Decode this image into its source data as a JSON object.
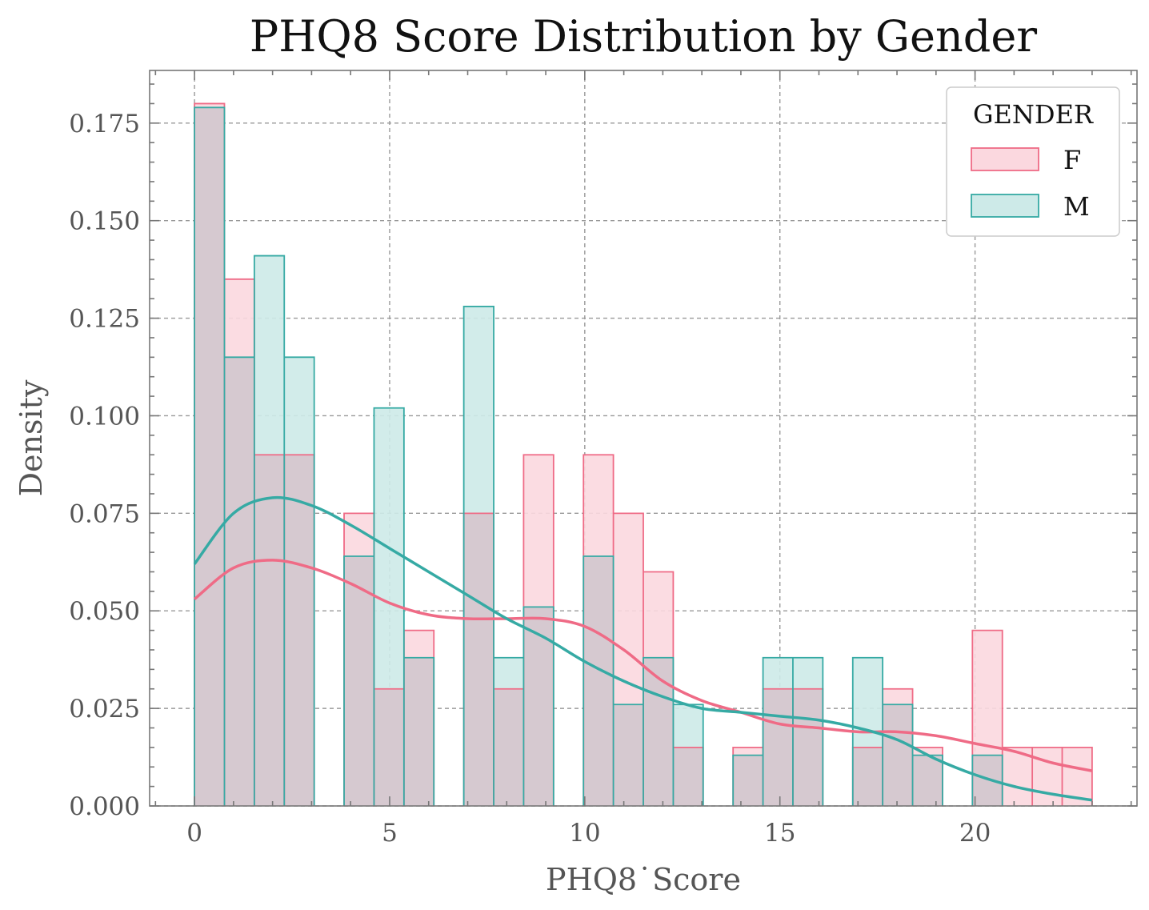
{
  "chart_data": {
    "type": "bar",
    "title": "PHQ8 Score Distribution by Gender",
    "xlabel": "PHQ8˙Score",
    "ylabel": "Density",
    "xlim": [
      -1.15,
      24.15
    ],
    "ylim": [
      0,
      0.1885
    ],
    "xticks": [
      0,
      5,
      10,
      15,
      20
    ],
    "yticks": [
      0.0,
      0.025,
      0.05,
      0.075,
      0.1,
      0.125,
      0.15,
      0.175
    ],
    "ytick_labels": [
      "0.000",
      "0.025",
      "0.050",
      "0.075",
      "0.100",
      "0.125",
      "0.150",
      "0.175"
    ],
    "xtick_labels": [
      "0",
      "5",
      "10",
      "15",
      "20"
    ],
    "grid": true,
    "legend": {
      "title": "GENDER",
      "placement": "top-right"
    },
    "bin_edges": [
      0,
      0.767,
      1.533,
      2.3,
      3.067,
      3.833,
      4.6,
      5.367,
      6.133,
      6.9,
      7.667,
      8.433,
      9.2,
      9.967,
      10.733,
      11.5,
      12.267,
      13.033,
      13.8,
      14.567,
      15.333,
      16.1,
      16.867,
      17.633,
      18.4,
      19.167,
      19.933,
      20.7,
      21.467,
      22.233,
      23.0
    ],
    "series": [
      {
        "name": "F",
        "line_color": "#ef6b86",
        "fill_color": "#fbd8df",
        "values": [
          0.18,
          0.135,
          0.09,
          0.09,
          0.0,
          0.075,
          0.03,
          0.045,
          0.0,
          0.075,
          0.03,
          0.09,
          0.0,
          0.09,
          0.075,
          0.06,
          0.015,
          0.0,
          0.015,
          0.03,
          0.03,
          0.0,
          0.015,
          0.03,
          0.015,
          0.0,
          0.045,
          0.015,
          0.015,
          0.015
        ],
        "kde": {
          "x": [
            0,
            1,
            2,
            3,
            4,
            5,
            6,
            7,
            8,
            9,
            10,
            11,
            12,
            13,
            14,
            15,
            16,
            17,
            18,
            19,
            20,
            21,
            22,
            23
          ],
          "y": [
            0.053,
            0.061,
            0.063,
            0.061,
            0.057,
            0.052,
            0.049,
            0.048,
            0.048,
            0.048,
            0.046,
            0.04,
            0.032,
            0.027,
            0.024,
            0.021,
            0.02,
            0.019,
            0.019,
            0.018,
            0.016,
            0.014,
            0.011,
            0.009
          ]
        }
      },
      {
        "name": "M",
        "line_color": "#36aaa4",
        "fill_color": "#cdeae8",
        "values": [
          0.179,
          0.115,
          0.141,
          0.115,
          0.0,
          0.064,
          0.102,
          0.038,
          0.0,
          0.128,
          0.038,
          0.051,
          0.0,
          0.064,
          0.026,
          0.038,
          0.026,
          0.0,
          0.013,
          0.038,
          0.038,
          0.0,
          0.038,
          0.026,
          0.013,
          0.0,
          0.013,
          0.0,
          0.0,
          0.0
        ],
        "kde": {
          "x": [
            0,
            1,
            2,
            3,
            4,
            5,
            6,
            7,
            8,
            9,
            10,
            11,
            12,
            13,
            14,
            15,
            16,
            17,
            18,
            19,
            20,
            21,
            22,
            23
          ],
          "y": [
            0.062,
            0.075,
            0.079,
            0.077,
            0.072,
            0.066,
            0.06,
            0.054,
            0.048,
            0.043,
            0.037,
            0.032,
            0.028,
            0.025,
            0.024,
            0.023,
            0.022,
            0.02,
            0.017,
            0.012,
            0.008,
            0.005,
            0.003,
            0.0015
          ]
        }
      }
    ]
  }
}
